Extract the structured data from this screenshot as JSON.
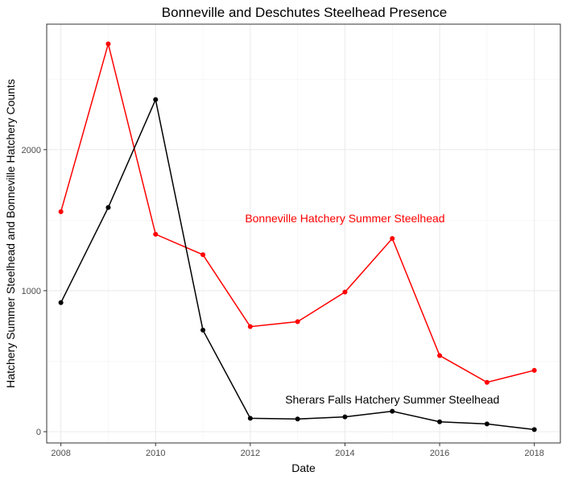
{
  "chart_data": {
    "type": "line",
    "title": "Bonneville and Deschutes Steelhead Presence",
    "xlabel": "Date",
    "ylabel": "Hatchery Summer Steelhead and Bonneville Hatchery Counts",
    "x": [
      2008,
      2009,
      2010,
      2011,
      2012,
      2013,
      2014,
      2015,
      2016,
      2017,
      2018
    ],
    "xlim": [
      2007.7,
      2018.55
    ],
    "ylim": [
      -80,
      2890
    ],
    "x_ticks": [
      2008,
      2010,
      2012,
      2014,
      2016,
      2018
    ],
    "y_ticks": [
      0,
      1000,
      2000
    ],
    "x_tick_labels": [
      "2008",
      "2010",
      "2012",
      "2014",
      "2016",
      "2018"
    ],
    "y_tick_labels": [
      "0",
      "1000",
      "2000"
    ],
    "grid": true,
    "legend": "none",
    "series": [
      {
        "name": "Bonneville Hatchery Summer Steelhead",
        "color": "#ff0000",
        "values": [
          1560,
          2750,
          1400,
          1255,
          745,
          780,
          990,
          1370,
          540,
          350,
          435
        ]
      },
      {
        "name": "Sherars Falls Hatchery Summer Steelhead",
        "color": "#000000",
        "values": [
          915,
          1590,
          2355,
          720,
          95,
          90,
          105,
          145,
          70,
          55,
          15
        ]
      }
    ],
    "annotations": [
      {
        "text": "Bonneville Hatchery Summer Steelhead",
        "x": 2014.0,
        "y": 1485,
        "color": "#ff0000"
      },
      {
        "text": "Sherars Falls Hatchery Summer Steelhead",
        "x": 2015.0,
        "y": 200,
        "color": "#000000"
      }
    ]
  }
}
